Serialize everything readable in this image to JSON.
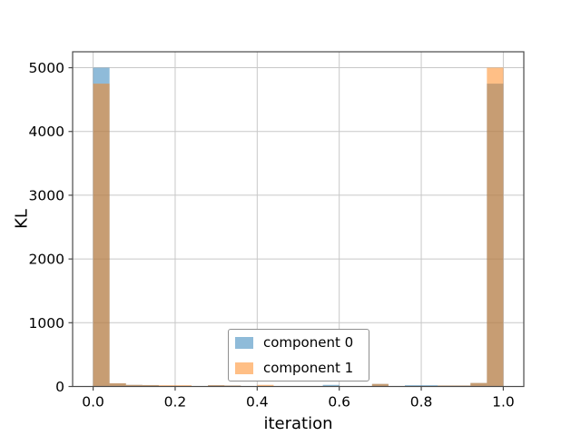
{
  "chart_data": {
    "type": "bar",
    "subtype": "overlapping-histogram",
    "title": "",
    "xlabel": "iteration",
    "ylabel": "KL",
    "xlim": [
      -0.05,
      1.05
    ],
    "ylim": [
      0,
      5250
    ],
    "grid": true,
    "xticks": [
      0.0,
      0.2,
      0.4,
      0.6,
      0.8,
      1.0
    ],
    "xtick_labels": [
      "0.0",
      "0.2",
      "0.4",
      "0.6",
      "0.8",
      "1.0"
    ],
    "yticks": [
      0,
      1000,
      2000,
      3000,
      4000,
      5000
    ],
    "ytick_labels": [
      "0",
      "1000",
      "2000",
      "3000",
      "4000",
      "5000"
    ],
    "bin_edges": [
      0.0,
      0.04,
      0.08,
      0.12,
      0.16,
      0.2,
      0.24,
      0.28,
      0.32,
      0.36,
      0.4,
      0.44,
      0.48,
      0.52,
      0.56,
      0.6,
      0.64,
      0.68,
      0.72,
      0.76,
      0.8,
      0.84,
      0.88,
      0.92,
      0.96,
      1.0
    ],
    "series": [
      {
        "name": "component 0",
        "color": "#1f77b4",
        "alpha": 0.5,
        "counts": [
          5000,
          50,
          25,
          22,
          0,
          0,
          0,
          20,
          15,
          0,
          0,
          0,
          0,
          0,
          25,
          0,
          0,
          40,
          0,
          20,
          20,
          15,
          15,
          55,
          4750
        ]
      },
      {
        "name": "component 1",
        "color": "#ff7f0e",
        "alpha": 0.5,
        "counts": [
          4750,
          50,
          25,
          22,
          20,
          20,
          0,
          20,
          15,
          0,
          25,
          0,
          0,
          0,
          0,
          0,
          0,
          40,
          0,
          0,
          0,
          15,
          15,
          55,
          5000
        ]
      }
    ],
    "legend": {
      "position": "lower center",
      "items": [
        {
          "label": "component 0",
          "swatch_color": "#8fbbd9"
        },
        {
          "label": "component 1",
          "swatch_color": "#ffbf86"
        }
      ]
    }
  }
}
